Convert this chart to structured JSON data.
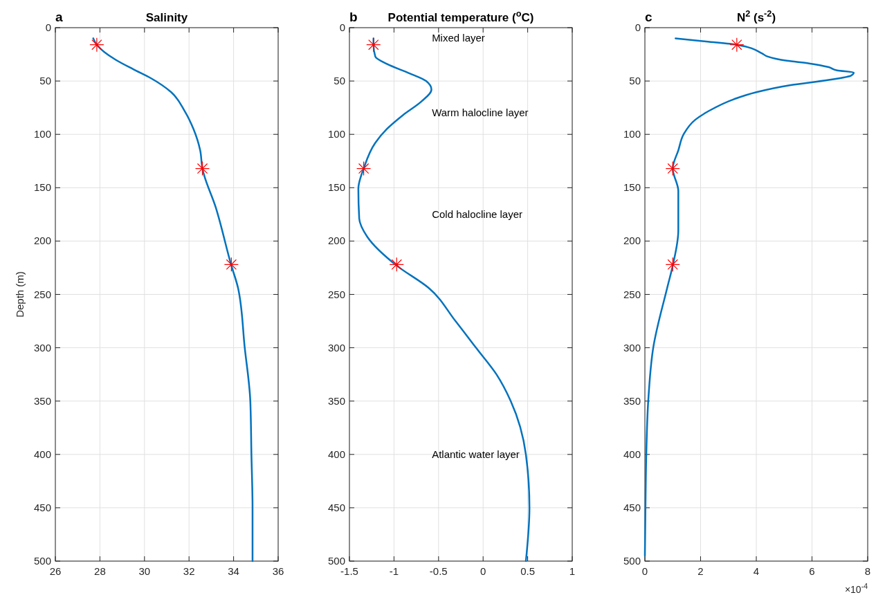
{
  "chart_data": [
    {
      "type": "line",
      "title": "Salinity",
      "ylabel": "Depth (m)",
      "annotations": [
        "a"
      ],
      "xlim": [
        26,
        36
      ],
      "xticks": [
        26,
        28,
        30,
        32,
        34,
        36
      ],
      "ylim": [
        500,
        0
      ],
      "yticks": [
        0,
        50,
        100,
        150,
        200,
        250,
        300,
        350,
        400,
        450,
        500
      ],
      "grid": true,
      "series": [
        {
          "type": "line",
          "color": "#0072bd",
          "x": [
            27.7,
            27.86,
            28.7,
            29.5,
            30.3,
            31.2,
            31.8,
            32.2,
            32.5,
            32.6,
            33.2,
            33.9,
            34.2,
            34.5,
            34.75,
            34.8,
            34.85,
            34.85
          ],
          "values": [
            10,
            16,
            30,
            39,
            47.5,
            60.5,
            78,
            95,
            115,
            132,
            168.5,
            223,
            244,
            300,
            350,
            400,
            450,
            500
          ]
        },
        {
          "type": "scatter",
          "color": "#ff0000",
          "marker": "cross",
          "x": [
            27.86,
            32.6,
            33.9
          ],
          "values": [
            16,
            132,
            222
          ]
        }
      ]
    },
    {
      "type": "line",
      "title": "Potential temperature ($^{o}$C)",
      "annotations": [
        "b",
        "Mixed layer",
        "Warm halocline layer",
        "Cold halocline layer",
        "Atlantic water layer"
      ],
      "xlim": [
        -1.5,
        1
      ],
      "xticks": [
        -1.5,
        -1,
        -0.5,
        0,
        0.5,
        1
      ],
      "ylim": [
        500,
        0
      ],
      "yticks": [
        0,
        50,
        100,
        150,
        200,
        250,
        300,
        350,
        400,
        450,
        500
      ],
      "grid": true,
      "series": [
        {
          "type": "line",
          "color": "#0072bd",
          "x": [
            -1.23,
            -1.23,
            -1.21,
            -1.08,
            -0.82,
            -0.64,
            -0.58,
            -0.69,
            -0.9,
            -1.08,
            -1.21,
            -1.34,
            -1.4,
            -1.39,
            -1.3,
            -0.97,
            -0.61,
            -0.31,
            -0.08,
            0.15,
            0.31,
            0.48,
            0.52,
            0.48
          ],
          "values": [
            10,
            16,
            27,
            34,
            43,
            50,
            58,
            69,
            82,
            95,
            108,
            132,
            151,
            179,
            196,
            223,
            244,
            275,
            300,
            325,
            350,
            400,
            450,
            500
          ]
        },
        {
          "type": "scatter",
          "color": "#ff0000",
          "marker": "cross",
          "x": [
            -1.23,
            -1.34,
            -0.97
          ],
          "values": [
            16,
            132,
            222
          ]
        }
      ]
    },
    {
      "type": "line",
      "title": "N$^{2}$ (s$^{-2}$)",
      "annotations": [
        "c",
        "×10$^{-4}$"
      ],
      "xlim": [
        0,
        8
      ],
      "xticks": [
        0,
        2,
        4,
        6,
        8
      ],
      "ylim": [
        500,
        0
      ],
      "yticks": [
        0,
        50,
        100,
        150,
        200,
        250,
        300,
        350,
        400,
        450,
        500
      ],
      "grid": true,
      "series": [
        {
          "type": "line",
          "color": "#0072bd",
          "x": [
            1.1,
            2.2,
            3.3,
            4.2,
            4.4,
            5.1,
            5.9,
            6.6,
            6.9,
            7.5,
            7.4,
            6.6,
            5.2,
            4.0,
            3.2,
            2.3,
            1.8,
            1.4,
            1.2,
            1.0,
            1.2,
            1.2,
            1.0,
            0.8,
            0.3,
            0.12,
            0.05,
            0.02,
            0
          ],
          "values": [
            10,
            13,
            16,
            24,
            27,
            31,
            33.5,
            37,
            40,
            42,
            45,
            49,
            54,
            60.5,
            67,
            78,
            86.5,
            99.5,
            115,
            132,
            153,
            190,
            223,
            244,
            300,
            350,
            400,
            450,
            495
          ]
        },
        {
          "type": "scatter",
          "color": "#ff0000",
          "marker": "cross",
          "x": [
            3.3,
            1.0,
            1.0
          ],
          "values": [
            16,
            132,
            222
          ]
        }
      ]
    }
  ]
}
